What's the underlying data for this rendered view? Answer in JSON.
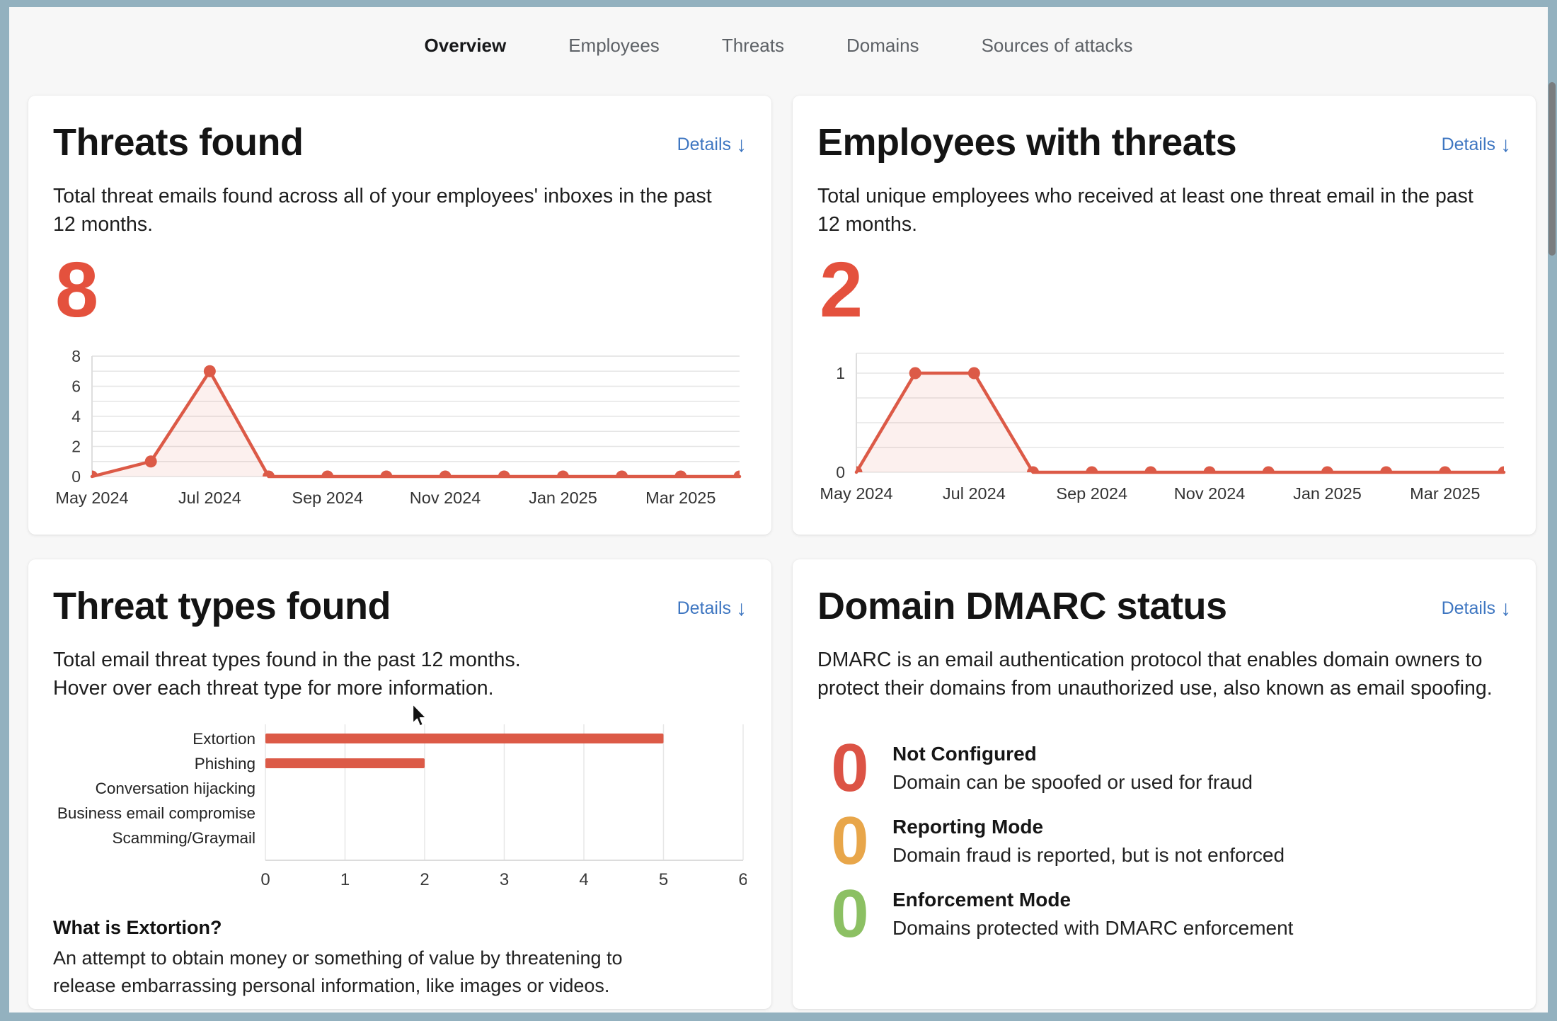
{
  "page": {
    "background": "#f7f7f7",
    "frame_color": "#93b1bf",
    "accent_red": "#dc5a47",
    "link_blue": "#3e76c1",
    "icons": {
      "down_arrow": "↓"
    }
  },
  "nav": {
    "items": [
      {
        "label": "Overview",
        "active": true
      },
      {
        "label": "Employees",
        "active": false
      },
      {
        "label": "Threats",
        "active": false
      },
      {
        "label": "Domains",
        "active": false
      },
      {
        "label": "Sources of attacks",
        "active": false
      }
    ]
  },
  "threats_card": {
    "title": "Threats found",
    "details_label": "Details",
    "description": "Total threat emails found across all of your employees' inboxes in the past 12 months.",
    "total": "8"
  },
  "employees_card": {
    "title": "Employees with threats",
    "details_label": "Details",
    "description": "Total unique employees who received at least one threat email in the past 12 months.",
    "total": "2"
  },
  "threat_types_card": {
    "title": "Threat types found",
    "details_label": "Details",
    "description_line1": "Total email threat types found in the past 12 months.",
    "description_line2": "Hover over each threat type for more information.",
    "info_title": "What is Extortion?",
    "info_text": "An attempt to obtain money or something of value by threatening to release embarrassing personal information, like images or videos."
  },
  "dmarc_card": {
    "title": "Domain DMARC status",
    "details_label": "Details",
    "description": "DMARC is an email authentication protocol that enables domain owners to protect their domains from unauthorized use, also known as email spoofing.",
    "statuses": [
      {
        "count": "0",
        "label": "Not Configured",
        "description": "Domain can be spoofed or used for fraud",
        "color": "#dc5345"
      },
      {
        "count": "0",
        "label": "Reporting Mode",
        "description": "Domain fraud is reported, but is not enforced",
        "color": "#e8a64a"
      },
      {
        "count": "0",
        "label": "Enforcement Mode",
        "description": "Domains protected with DMARC enforcement",
        "color": "#8cc063"
      }
    ]
  },
  "chart_data": [
    {
      "id": "threats-trend",
      "type": "line",
      "title": "Threats found by month",
      "x": [
        "May 2024",
        "Jun 2024",
        "Jul 2024",
        "Aug 2024",
        "Sep 2024",
        "Oct 2024",
        "Nov 2024",
        "Dec 2024",
        "Jan 2025",
        "Feb 2025",
        "Mar 2025",
        "Apr 2025"
      ],
      "values": [
        0,
        1,
        7,
        0,
        0,
        0,
        0,
        0,
        0,
        0,
        0,
        0
      ],
      "x_tick_labels": [
        "May 2024",
        "Jul 2024",
        "Sep 2024",
        "Nov 2024",
        "Jan 2025",
        "Mar 2025"
      ],
      "ylim": [
        0,
        8
      ],
      "yticks": [
        0,
        2,
        4,
        6,
        8
      ],
      "grid_step": 1,
      "grid_max": 8,
      "legend": "none",
      "grid": "horizontal",
      "color": "#dc5a47",
      "fill_opacity": 0.09,
      "marker": "circle"
    },
    {
      "id": "employees-trend",
      "type": "line",
      "title": "Employees with threats by month",
      "x": [
        "May 2024",
        "Jun 2024",
        "Jul 2024",
        "Aug 2024",
        "Sep 2024",
        "Oct 2024",
        "Nov 2024",
        "Dec 2024",
        "Jan 2025",
        "Feb 2025",
        "Mar 2025",
        "Apr 2025"
      ],
      "values": [
        0,
        1,
        1,
        0,
        0,
        0,
        0,
        0,
        0,
        0,
        0,
        0
      ],
      "x_tick_labels": [
        "May 2024",
        "Jul 2024",
        "Sep 2024",
        "Nov 2024",
        "Jan 2025",
        "Mar 2025"
      ],
      "ylim": [
        0,
        1.2
      ],
      "yticks": [
        0,
        1
      ],
      "grid_step": 0.25,
      "grid_max": 1,
      "legend": "none",
      "grid": "horizontal",
      "color": "#dc5a47",
      "fill_opacity": 0.09,
      "marker": "circle"
    },
    {
      "id": "threat-types",
      "type": "bar",
      "orientation": "horizontal",
      "title": "Threat types found",
      "categories": [
        "Extortion",
        "Phishing",
        "Conversation hijacking",
        "Business email compromise",
        "Scamming/Graymail"
      ],
      "values": [
        5,
        2,
        0,
        0,
        0
      ],
      "xlim": [
        0,
        6
      ],
      "xticks": [
        0,
        1,
        2,
        3,
        4,
        5,
        6
      ],
      "grid": "vertical",
      "legend": "none",
      "color": "#dc5a47"
    }
  ]
}
